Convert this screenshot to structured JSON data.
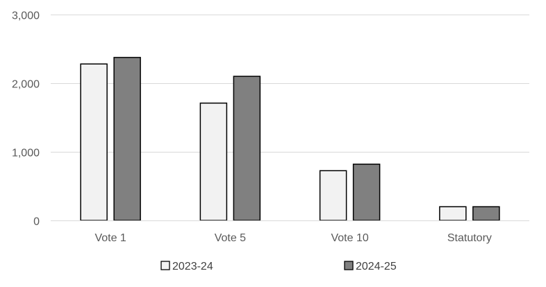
{
  "chart_data": {
    "type": "bar",
    "categories": [
      "Vote 1",
      "Vote 5",
      "Vote 10",
      "Statutory"
    ],
    "series": [
      {
        "name": "2023-24",
        "values": [
          2280,
          1710,
          725,
          200
        ],
        "color": "#f2f2f2"
      },
      {
        "name": "2024-25",
        "values": [
          2375,
          2100,
          820,
          200
        ],
        "color": "#808080"
      }
    ],
    "ylim": [
      0,
      3000
    ],
    "yticks": [
      0,
      1000,
      2000,
      3000
    ],
    "ytick_labels": [
      "0",
      "1,000",
      "2,000",
      "3,000"
    ],
    "grid": true,
    "legend_position": "bottom",
    "bar_outline_color": "#000000",
    "gridline_color": "#d9d9d9"
  }
}
